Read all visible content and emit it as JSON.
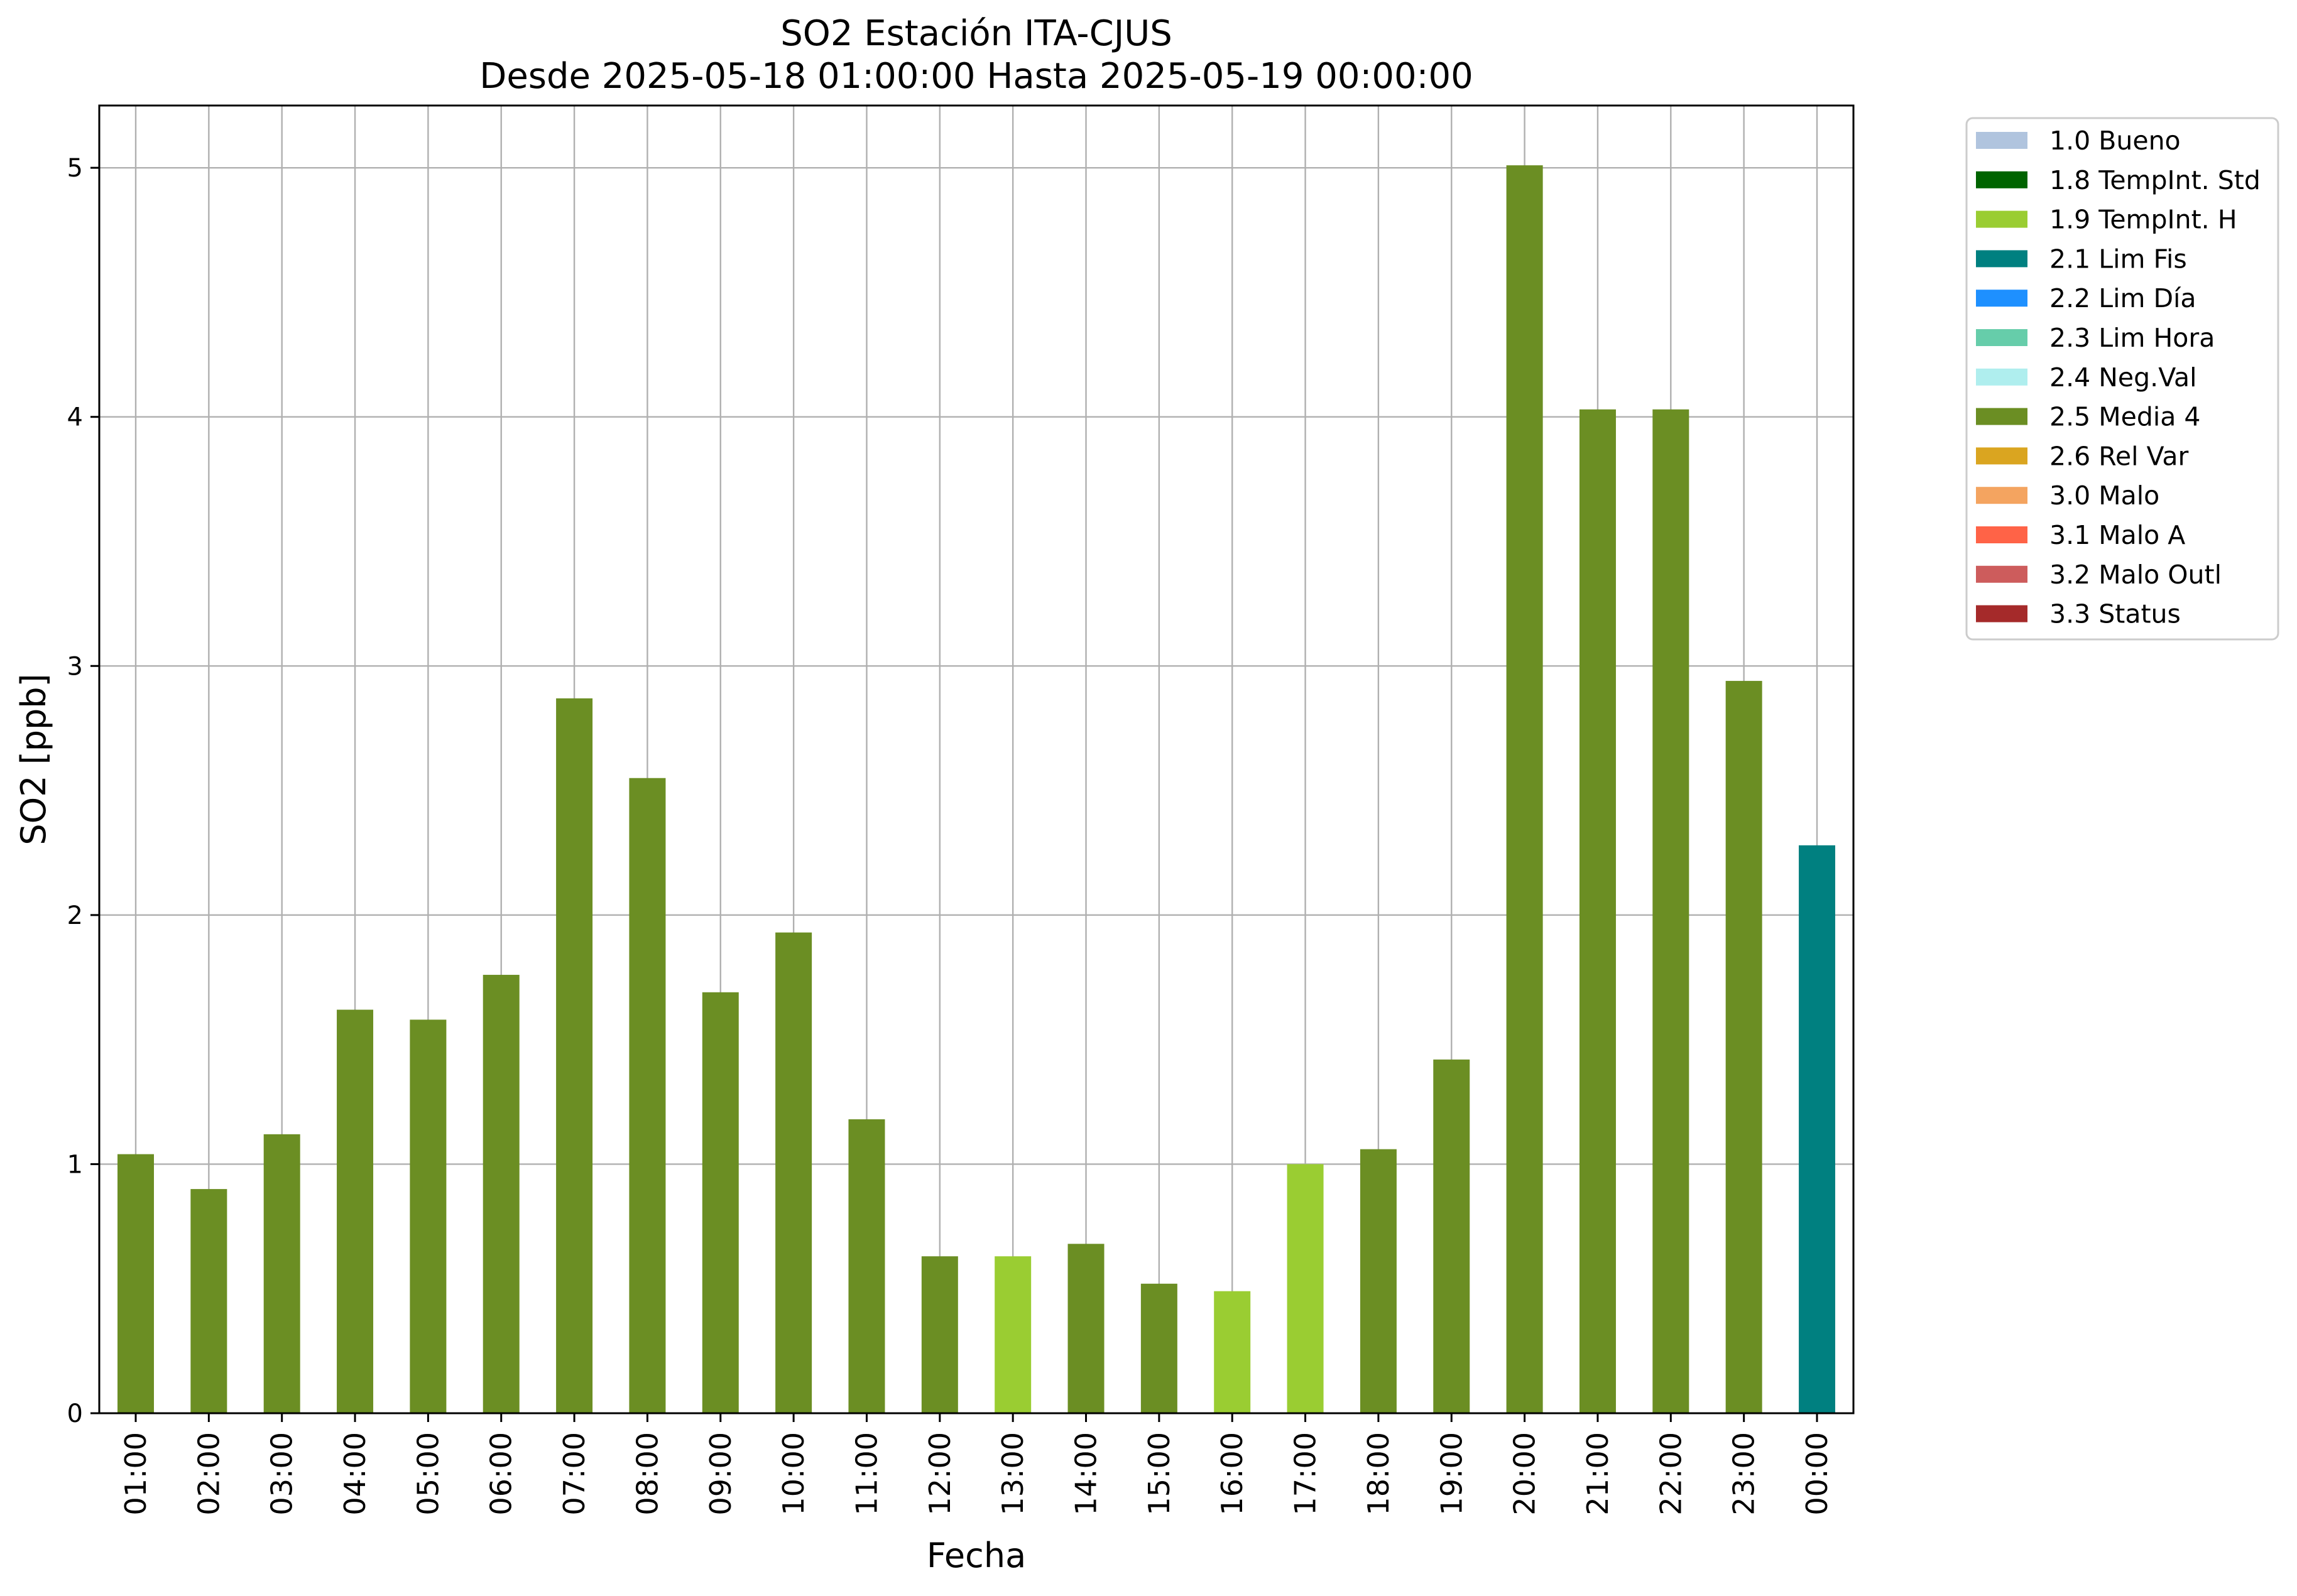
{
  "chart_data": {
    "type": "bar",
    "title": "SO2 Estación ITA-CJUS",
    "subtitle": "Desde 2025-05-18 01:00:00 Hasta 2025-05-19 00:00:00",
    "xlabel": "Fecha",
    "ylabel": "SO2 [ppb]",
    "ylim": [
      0,
      5.25
    ],
    "yticks": [
      0,
      1,
      2,
      3,
      4,
      5
    ],
    "grid": true,
    "legend_position": "outside-top-right",
    "categories": [
      "01:00",
      "02:00",
      "03:00",
      "04:00",
      "05:00",
      "06:00",
      "07:00",
      "08:00",
      "09:00",
      "10:00",
      "11:00",
      "12:00",
      "13:00",
      "14:00",
      "15:00",
      "16:00",
      "17:00",
      "18:00",
      "19:00",
      "20:00",
      "21:00",
      "22:00",
      "23:00",
      "00:00"
    ],
    "values": [
      1.04,
      0.9,
      1.12,
      1.62,
      1.58,
      1.76,
      2.87,
      2.55,
      1.69,
      1.93,
      1.18,
      0.63,
      0.63,
      0.68,
      0.52,
      0.49,
      1.0,
      1.06,
      1.42,
      5.01,
      4.03,
      4.03,
      2.94,
      2.28
    ],
    "flags": [
      "2.5 Media 4",
      "2.5 Media 4",
      "2.5 Media 4",
      "2.5 Media 4",
      "2.5 Media 4",
      "2.5 Media 4",
      "2.5 Media 4",
      "2.5 Media 4",
      "2.5 Media 4",
      "2.5 Media 4",
      "2.5 Media 4",
      "2.5 Media 4",
      "1.9 TempInt. H",
      "2.5 Media 4",
      "2.5 Media 4",
      "1.9 TempInt. H",
      "1.9 TempInt. H",
      "2.5 Media 4",
      "2.5 Media 4",
      "2.5 Media 4",
      "2.5 Media 4",
      "2.5 Media 4",
      "2.5 Media 4",
      "2.1 Lim Fis"
    ],
    "legend": [
      {
        "label": "1.0 Bueno",
        "color": "#b0c4de"
      },
      {
        "label": "1.8 TempInt. Std",
        "color": "#006400"
      },
      {
        "label": "1.9 TempInt. H",
        "color": "#9acd32"
      },
      {
        "label": "2.1 Lim Fis",
        "color": "#008080"
      },
      {
        "label": "2.2 Lim Día",
        "color": "#1e90ff"
      },
      {
        "label": "2.3 Lim Hora",
        "color": "#66cdaa"
      },
      {
        "label": "2.4 Neg.Val",
        "color": "#afeeee"
      },
      {
        "label": "2.5 Media 4",
        "color": "#6b8e23"
      },
      {
        "label": "2.6 Rel Var",
        "color": "#daa520"
      },
      {
        "label": "3.0 Malo",
        "color": "#f4a460"
      },
      {
        "label": "3.1 Malo A",
        "color": "#ff6347"
      },
      {
        "label": "3.2 Malo Outl",
        "color": "#cd5c5c"
      },
      {
        "label": "3.3 Status",
        "color": "#a52a2a"
      }
    ]
  }
}
